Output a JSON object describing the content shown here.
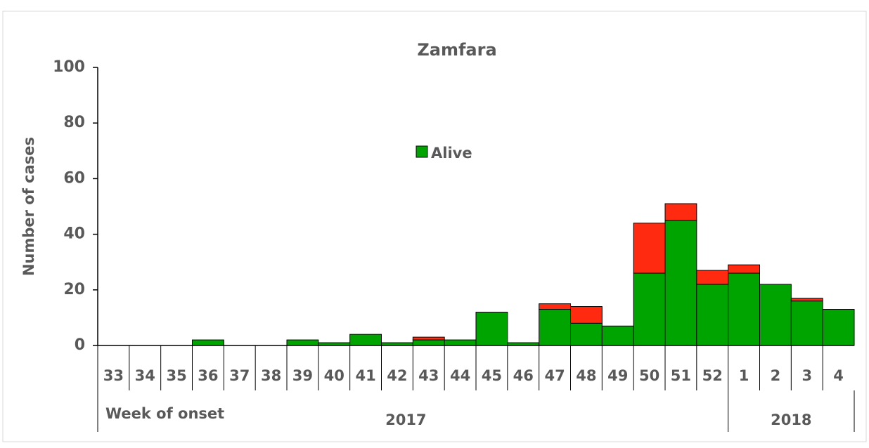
{
  "chart_data": {
    "type": "bar",
    "stacked": true,
    "title": "Zamfara",
    "y_label": "Number of cases",
    "x_label": "Week of onset",
    "categories": [
      "33",
      "34",
      "35",
      "36",
      "37",
      "38",
      "39",
      "40",
      "41",
      "42",
      "43",
      "44",
      "45",
      "46",
      "47",
      "48",
      "49",
      "50",
      "51",
      "52",
      "1",
      "2",
      "3",
      "4"
    ],
    "groups": [
      {
        "label": "2017",
        "span": 20
      },
      {
        "label": "2018",
        "span": 4
      }
    ],
    "series": [
      {
        "name": "Alive",
        "color": "#00a400",
        "values": [
          0,
          0,
          0,
          2,
          0,
          0,
          2,
          1,
          4,
          1,
          2,
          2,
          12,
          1,
          13,
          8,
          7,
          26,
          45,
          22,
          26,
          22,
          16,
          13
        ]
      },
      {
        "color": "#ff2a10",
        "values": [
          0,
          0,
          0,
          0,
          0,
          0,
          0,
          0,
          0,
          0,
          1,
          0,
          0,
          0,
          2,
          6,
          0,
          18,
          6,
          5,
          3,
          0,
          1,
          0
        ]
      }
    ],
    "ylim": [
      0,
      100
    ],
    "yticks": [
      0,
      20,
      40,
      60,
      80,
      100
    ]
  }
}
